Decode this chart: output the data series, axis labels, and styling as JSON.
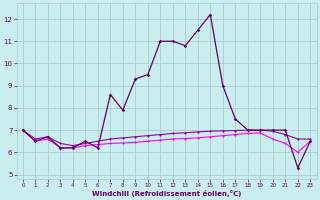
{
  "xlabel": "Windchill (Refroidissement éolien,°C)",
  "xlim": [
    -0.5,
    23.5
  ],
  "ylim": [
    4.8,
    12.7
  ],
  "yticks": [
    5,
    6,
    7,
    8,
    9,
    10,
    11,
    12
  ],
  "xticks": [
    0,
    1,
    2,
    3,
    4,
    5,
    6,
    7,
    8,
    9,
    10,
    11,
    12,
    13,
    14,
    15,
    16,
    17,
    18,
    19,
    20,
    21,
    22,
    23
  ],
  "bg_color": "#c8eef0",
  "grid_color": "#b0c8d0",
  "line_color_dark": "#660066",
  "line_color_mid": "#990099",
  "line_color_pink": "#ff00ff",
  "series1_x": [
    0,
    1,
    2,
    3,
    4,
    5,
    6,
    7,
    8,
    9,
    10,
    11,
    12,
    13,
    14,
    15,
    16,
    17,
    18,
    19,
    20,
    21,
    22,
    23
  ],
  "series1_y": [
    7.0,
    6.5,
    6.7,
    6.2,
    6.2,
    6.5,
    6.2,
    8.6,
    7.9,
    9.3,
    9.5,
    11.0,
    11.0,
    10.8,
    11.5,
    12.2,
    9.0,
    7.5,
    7.0,
    7.0,
    7.0,
    7.0,
    5.3,
    6.5
  ],
  "series2_x": [
    0,
    1,
    2,
    3,
    4,
    5,
    6,
    7,
    8,
    9,
    10,
    11,
    12,
    13,
    14,
    15,
    16,
    17,
    18,
    19,
    20,
    21,
    22,
    23
  ],
  "series2_y": [
    7.0,
    6.6,
    6.7,
    6.4,
    6.3,
    6.4,
    6.5,
    6.6,
    6.65,
    6.7,
    6.75,
    6.8,
    6.85,
    6.88,
    6.92,
    6.95,
    6.97,
    6.98,
    7.0,
    7.0,
    6.95,
    6.8,
    6.6,
    6.6
  ],
  "series3_x": [
    0,
    1,
    2,
    3,
    4,
    5,
    6,
    7,
    8,
    9,
    10,
    11,
    12,
    13,
    14,
    15,
    16,
    17,
    18,
    19,
    20,
    21,
    22,
    23
  ],
  "series3_y": [
    7.0,
    6.5,
    6.6,
    6.2,
    6.2,
    6.3,
    6.35,
    6.4,
    6.42,
    6.45,
    6.5,
    6.55,
    6.6,
    6.62,
    6.65,
    6.7,
    6.75,
    6.8,
    6.85,
    6.87,
    6.6,
    6.4,
    6.0,
    6.5
  ]
}
